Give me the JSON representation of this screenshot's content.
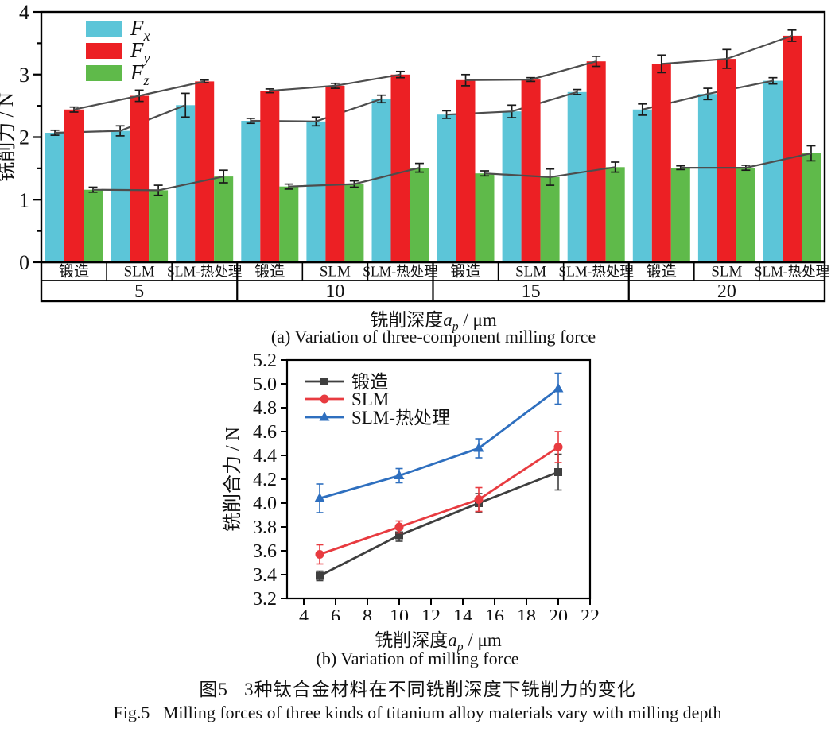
{
  "figure": {
    "caption_zh": "图5   3种钛合金材料在不同铣削深度下铣削力的变化",
    "caption_en": "Fig.5   Milling forces of three kinds of titanium alloy materials vary with milling depth"
  },
  "chart_a": {
    "subcaption": "(a) Variation of three-component milling force",
    "xlabel": {
      "prefix": "铣削深度",
      "var": "a",
      "sub": "p",
      "unit": " / μm"
    },
    "ylabel": "铣削力 / N"
  },
  "chart_b": {
    "subcaption": "(b) Variation of milling force",
    "xlabel": {
      "prefix": "铣削深度",
      "var": "a",
      "sub": "p",
      "unit": " / μm"
    },
    "ylabel": "铣削合力 / N"
  },
  "chart_data": [
    {
      "type": "bar",
      "title": "",
      "ylabel": "铣削力 / N",
      "xlabel": "铣削深度 ap / μm",
      "ylim": [
        0,
        4
      ],
      "y_ticks": [
        0,
        1,
        2,
        3,
        4
      ],
      "y_minor_step": 0.5,
      "grid": false,
      "legend_position": "top-left",
      "depth_groups": [
        "5",
        "10",
        "15",
        "20"
      ],
      "materials": [
        "锻造",
        "SLM",
        "SLM-热处理"
      ],
      "values_index": "values[depth_group][material]",
      "connector_color": "#4d4d4d",
      "error_color": "#1a1a1a",
      "series": [
        {
          "name": "Fx",
          "label_var": "F",
          "label_sub": "x",
          "color": "#5cc5d8",
          "values": [
            [
              2.07,
              2.1,
              2.51
            ],
            [
              2.26,
              2.25,
              2.61
            ],
            [
              2.36,
              2.41,
              2.72
            ],
            [
              2.44,
              2.69,
              2.9
            ]
          ],
          "errors": [
            [
              0.04,
              0.08,
              0.19
            ],
            [
              0.04,
              0.07,
              0.06
            ],
            [
              0.06,
              0.1,
              0.04
            ],
            [
              0.09,
              0.09,
              0.05
            ]
          ]
        },
        {
          "name": "Fy",
          "label_var": "F",
          "label_sub": "y",
          "color": "#ec2024",
          "values": [
            [
              2.44,
              2.66,
              2.89
            ],
            [
              2.74,
              2.82,
              3.0
            ],
            [
              2.91,
              2.92,
              3.21
            ],
            [
              3.17,
              3.25,
              3.62
            ]
          ],
          "errors": [
            [
              0.04,
              0.09,
              0.02
            ],
            [
              0.03,
              0.04,
              0.05
            ],
            [
              0.09,
              0.03,
              0.08
            ],
            [
              0.14,
              0.15,
              0.09
            ]
          ]
        },
        {
          "name": "Fz",
          "label_var": "F",
          "label_sub": "z",
          "color": "#5fba4a",
          "values": [
            [
              1.16,
              1.15,
              1.37
            ],
            [
              1.21,
              1.25,
              1.51
            ],
            [
              1.42,
              1.36,
              1.52
            ],
            [
              1.51,
              1.51,
              1.74
            ]
          ],
          "errors": [
            [
              0.04,
              0.08,
              0.1
            ],
            [
              0.04,
              0.05,
              0.07
            ],
            [
              0.04,
              0.13,
              0.08
            ],
            [
              0.03,
              0.04,
              0.12
            ]
          ]
        }
      ]
    },
    {
      "type": "line",
      "title": "",
      "ylabel": "铣削合力 / N",
      "xlabel": "铣削深度 ap / μm",
      "x": [
        5,
        10,
        15,
        20
      ],
      "xlim": [
        4,
        22
      ],
      "x_ticks": [
        4,
        6,
        8,
        10,
        12,
        14,
        16,
        18,
        20,
        22
      ],
      "ylim": [
        3.2,
        5.2
      ],
      "y_tick_step": 0.2,
      "grid": false,
      "legend_position": "top-left",
      "series": [
        {
          "name": "锻造",
          "marker": "square",
          "color": "#3f3f3f",
          "values": [
            3.39,
            3.73,
            4.0,
            4.26
          ],
          "errors": [
            0.04,
            0.05,
            0.08,
            0.15
          ]
        },
        {
          "name": "SLM",
          "marker": "circle",
          "color": "#e83b40",
          "values": [
            3.57,
            3.8,
            4.03,
            4.47
          ],
          "errors": [
            0.08,
            0.05,
            0.1,
            0.13
          ]
        },
        {
          "name": "SLM-热处理",
          "marker": "triangle",
          "color": "#2e6fbf",
          "values": [
            4.04,
            4.23,
            4.46,
            4.96
          ],
          "errors": [
            0.12,
            0.06,
            0.08,
            0.13
          ]
        }
      ]
    }
  ]
}
